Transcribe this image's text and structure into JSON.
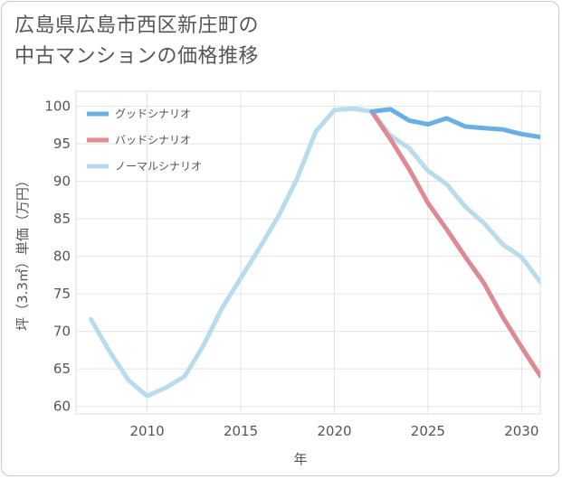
{
  "title": {
    "line1": "広島県広島市西区新庄町の",
    "line2": "中古マンションの価格推移"
  },
  "chart_data": {
    "type": "line",
    "xlabel": "年",
    "ylabel": "坪（3.3㎡）単価（万円）",
    "xlim": [
      2006.2,
      2031
    ],
    "ylim": [
      59,
      102
    ],
    "x_ticks": [
      2010,
      2015,
      2020,
      2025,
      2030
    ],
    "y_ticks": [
      60,
      65,
      70,
      75,
      80,
      85,
      90,
      95,
      100
    ],
    "x_tick_labels": [
      "2010",
      "2015",
      "2020",
      "2025",
      "2030"
    ],
    "y_tick_labels": [
      "60",
      "65",
      "70",
      "75",
      "80",
      "85",
      "90",
      "95",
      "100"
    ],
    "grid": true,
    "legend_position": "top-left",
    "series": [
      {
        "name": "グッドシナリオ",
        "color": "#6aaee6",
        "x": [
          2022,
          2023,
          2024,
          2025,
          2026,
          2027,
          2028,
          2029,
          2030,
          2031
        ],
        "y": [
          99.3,
          99.6,
          98.1,
          97.6,
          98.4,
          97.3,
          97.1,
          96.9,
          96.3,
          95.9
        ]
      },
      {
        "name": "バッドシナリオ",
        "color": "#dd8a92",
        "x": [
          2022,
          2023,
          2024,
          2025,
          2026,
          2027,
          2028,
          2029,
          2030,
          2031
        ],
        "y": [
          99.3,
          95.6,
          91.6,
          87.1,
          83.6,
          79.9,
          76.4,
          71.9,
          67.9,
          64.1
        ]
      },
      {
        "name": "ノーマルシナリオ",
        "color": "#b9dcec",
        "x": [
          2007,
          2008,
          2009,
          2010,
          2011,
          2012,
          2013,
          2014,
          2015,
          2016,
          2017,
          2018,
          2019,
          2020,
          2021,
          2022,
          2023,
          2024,
          2025,
          2026,
          2027,
          2028,
          2029,
          2030,
          2031
        ],
        "y": [
          71.6,
          67.3,
          63.5,
          61.4,
          62.5,
          64.0,
          68.1,
          73.1,
          77.1,
          81.1,
          85.3,
          90.3,
          96.6,
          99.5,
          99.7,
          99.3,
          96.1,
          94.4,
          91.4,
          89.6,
          86.6,
          84.4,
          81.6,
          79.9,
          76.6
        ]
      }
    ]
  }
}
